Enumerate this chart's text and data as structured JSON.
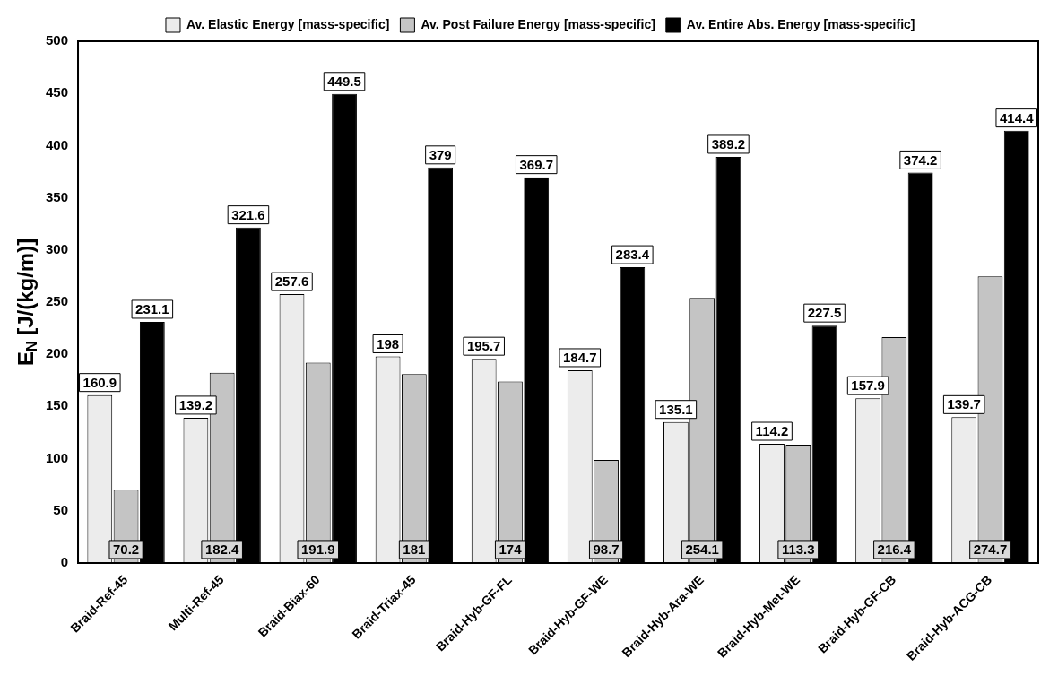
{
  "chart_data": {
    "type": "bar",
    "ylabel": "E$_{N}$ [J/(kg/m)]",
    "categories": [
      "Braid-Ref-45",
      "Multi-Ref-45",
      "Braid-Biax-60",
      "Braid-Triax-45",
      "Braid-Hyb-GF-FL",
      "Braid-Hyb-GF-WE",
      "Braid-Hyb-Ara-WE",
      "Braid-Hyb-Met-WE",
      "Braid-Hyb-GF-CB",
      "Braid-Hyb-ACG-CB"
    ],
    "series": [
      {
        "name": "Av. Elastic Energy [mass-specific]",
        "color": "#ececec",
        "values": [
          160.9,
          139.2,
          257.6,
          198,
          195.7,
          184.7,
          135.1,
          114.2,
          157.9,
          139.7
        ]
      },
      {
        "name": "Av. Post Failure Energy [mass-specific]",
        "color": "#c4c4c4",
        "values": [
          70.2,
          182.4,
          191.9,
          181,
          174,
          98.7,
          254.1,
          113.3,
          216.4,
          274.7
        ]
      },
      {
        "name": "Av. Entire Abs. Energy [mass-specific]",
        "color": "#000000",
        "values": [
          231.1,
          321.6,
          449.5,
          379,
          369.7,
          283.4,
          389.2,
          227.5,
          374.2,
          414.4
        ]
      }
    ],
    "ylim": [
      0,
      500
    ],
    "yticks": [
      0,
      50,
      100,
      150,
      200,
      250,
      300,
      350,
      400,
      450,
      500
    ],
    "grid": false,
    "legend": "top",
    "data_labels": true
  }
}
